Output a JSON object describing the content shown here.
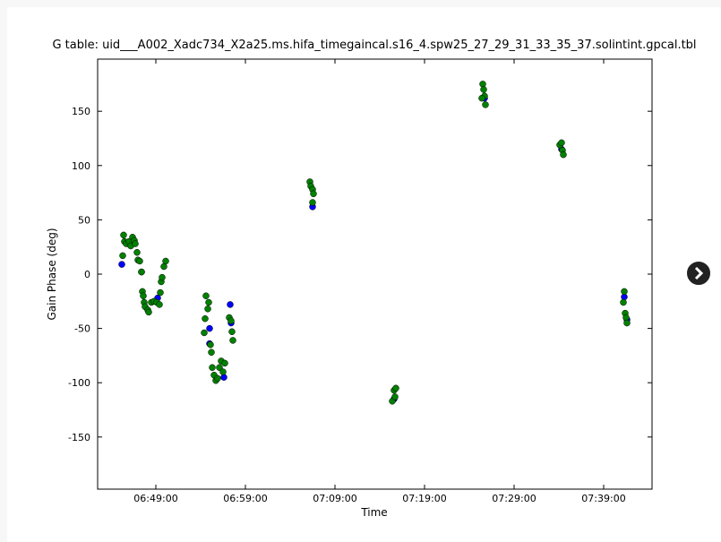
{
  "chart_data": {
    "type": "scatter",
    "title": "G table: uid___A002_Xadc734_X2a25.ms.hifa_timegaincal.s16_4.spw25_27_29_31_33_35_37.solintint.gpcal.tbl",
    "x_label": "Time",
    "y_label": "Gain Phase (deg)",
    "xlim": [
      "06:42:30",
      "07:44:24"
    ],
    "xticks": [
      "06:49:00",
      "06:59:00",
      "07:09:00",
      "07:19:00",
      "07:29:00",
      "07:39:00"
    ],
    "ylim": [
      -198,
      198
    ],
    "yticks": [
      150,
      100,
      50,
      0,
      -50,
      -100,
      -150
    ],
    "series": [
      {
        "color": "#0000ff",
        "x": [
          "06:45:12",
          "06:47:24",
          "06:49:12",
          "06:55:00",
          "06:55:00",
          "06:56:36",
          "06:57:18",
          "06:57:24",
          "07:06:30",
          "07:15:36",
          "07:25:42",
          "07:34:18",
          "07:41:18",
          "07:41:36"
        ],
        "values": [
          9,
          2,
          -22,
          -50,
          -64,
          -95,
          -28,
          -45,
          62,
          -115,
          162,
          115,
          -21,
          -42
        ]
      },
      {
        "color": "#008000",
        "x": [
          "06:45:18",
          "06:45:24",
          "06:45:30",
          "06:45:42",
          "06:46:00",
          "06:46:12",
          "06:46:24",
          "06:46:36",
          "06:46:42",
          "06:46:54",
          "06:47:00",
          "06:47:12",
          "06:47:24",
          "06:47:30",
          "06:47:36",
          "06:47:42",
          "06:47:48",
          "06:48:06",
          "06:48:12",
          "06:48:30",
          "06:48:48",
          "06:49:06",
          "06:49:24",
          "06:49:30",
          "06:49:36",
          "06:49:42",
          "06:49:54",
          "06:50:06",
          "06:54:24",
          "06:54:30",
          "06:54:36",
          "06:54:48",
          "06:54:54",
          "06:55:06",
          "06:55:12",
          "06:55:18",
          "06:55:30",
          "06:55:42",
          "06:55:54",
          "06:56:06",
          "06:56:18",
          "06:56:30",
          "06:56:42",
          "06:57:12",
          "06:57:24",
          "06:57:30",
          "06:57:36",
          "07:06:12",
          "07:06:18",
          "07:06:30",
          "07:06:36",
          "07:06:30",
          "07:15:24",
          "07:15:36",
          "07:15:48",
          "07:15:42",
          "07:25:30",
          "07:25:36",
          "07:25:42",
          "07:25:48",
          "07:25:24",
          "07:34:06",
          "07:34:18",
          "07:34:24",
          "07:34:30",
          "07:41:18",
          "07:41:12",
          "07:41:24",
          "07:41:30",
          "07:41:36"
        ],
        "values": [
          17,
          36,
          30,
          28,
          30,
          26,
          34,
          31,
          28,
          20,
          13,
          12,
          2,
          -16,
          -20,
          -26,
          -30,
          -33,
          -35,
          -26,
          -25,
          -26,
          -28,
          -17,
          -7,
          -3,
          7,
          12,
          -54,
          -41,
          -20,
          -32,
          -26,
          -65,
          -72,
          -86,
          -93,
          -98,
          -96,
          -86,
          -80,
          -90,
          -82,
          -40,
          -43,
          -53,
          -61,
          85,
          81,
          78,
          74,
          66,
          -117,
          -107,
          -105,
          -113,
          175,
          170,
          164,
          156,
          162,
          119,
          121,
          114,
          110,
          -16,
          -26,
          -36,
          -40,
          -45
        ]
      }
    ]
  }
}
